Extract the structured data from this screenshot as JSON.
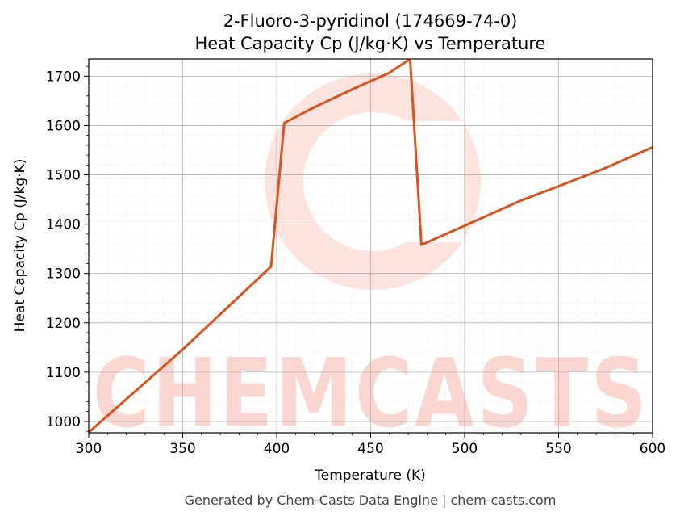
{
  "chart_data": {
    "type": "line",
    "title": "2-Fluoro-3-pyridinol (174669-74-0)",
    "subtitle": "Heat Capacity Cp (J/kg·K) vs Temperature",
    "xlabel": "Temperature (K)",
    "ylabel": "Heat Capacity Cp (J/kg·K)",
    "xlim": [
      300,
      600
    ],
    "ylim": [
      977,
      1735
    ],
    "x_ticks": [
      300,
      350,
      400,
      450,
      500,
      550,
      600
    ],
    "y_ticks": [
      1000,
      1100,
      1200,
      1300,
      1400,
      1500,
      1600,
      1700
    ],
    "grid": true,
    "legend": "none",
    "line_color": "#d9531e",
    "series": [
      {
        "x": [
          300,
          350,
          397,
          404,
          420,
          440,
          460,
          471,
          477,
          490,
          510,
          530,
          550,
          575,
          600
        ],
        "y": [
          978,
          1146,
          1314,
          1605,
          1637,
          1673,
          1707,
          1735,
          1358,
          1380,
          1414,
          1448,
          1477,
          1514,
          1556
        ]
      }
    ]
  },
  "watermark": {
    "text": "CHEMCASTS",
    "color": "#fbd5cf"
  },
  "footer": "Generated by Chem-Casts Data Engine | chem-casts.com"
}
